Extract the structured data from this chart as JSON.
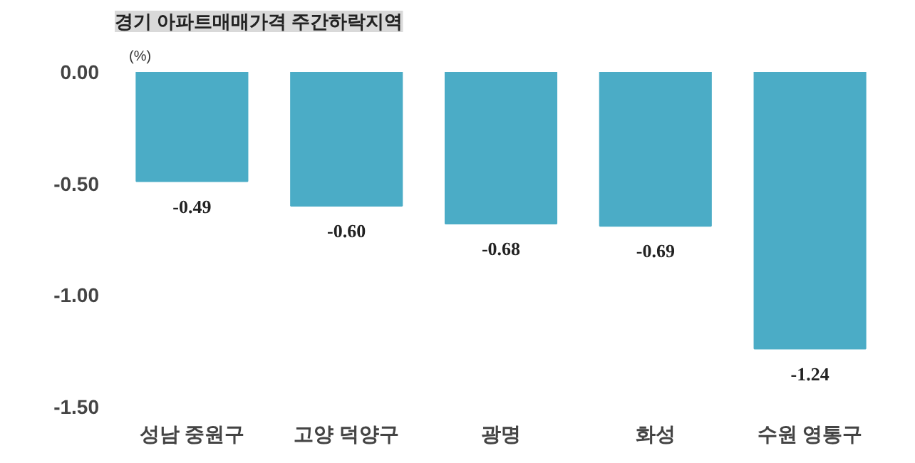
{
  "chart_data": {
    "type": "bar",
    "title": "경기 아파트매매가격 주간하락지역",
    "categories": [
      "성남 중원구",
      "고양 덕양구",
      "광명",
      "화성",
      "수원 영통구"
    ],
    "values": [
      -0.49,
      -0.6,
      -0.68,
      -0.69,
      -1.24
    ],
    "color": "#4bacc6",
    "ylim": [
      -1.5,
      0
    ],
    "yticks": [
      {
        "value": 0,
        "label": "0.00"
      },
      {
        "value": -0.5,
        "label": "-0.50"
      },
      {
        "value": -1.0,
        "label": "-1.00"
      },
      {
        "value": -1.5,
        "label": "-1.50"
      }
    ],
    "value_labels": [
      "-0.49",
      "-0.60",
      "-0.68",
      "-0.69",
      "-1.24"
    ],
    "annotations": [
      "(%)"
    ],
    "grid": false
  }
}
